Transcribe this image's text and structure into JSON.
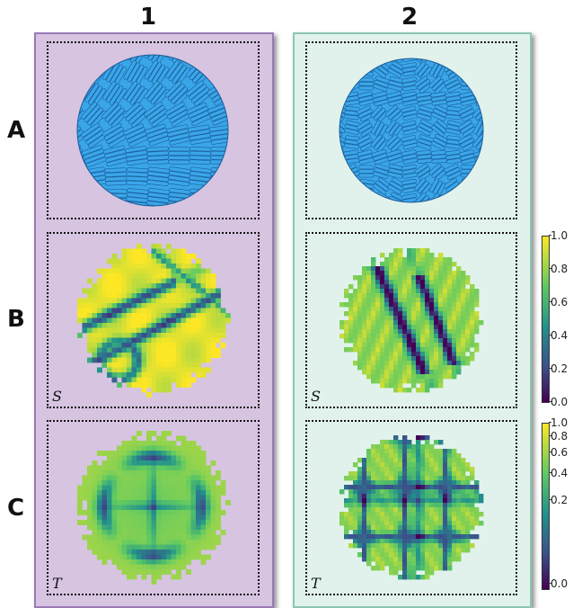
{
  "columns": [
    {
      "label": "1",
      "bg": "#d6c4e1",
      "border": "#9a7ab5"
    },
    {
      "label": "2",
      "bg": "#e1f2ec",
      "border": "#8cc7b0"
    }
  ],
  "rows": [
    {
      "label": "A"
    },
    {
      "label": "B"
    },
    {
      "label": "C"
    }
  ],
  "panel_labels": {
    "order": "S",
    "tetratic": "T"
  },
  "colors": {
    "particle": "#3aa6e8",
    "particle_edge": "#1b5c9a"
  },
  "colorbar_s": {
    "ticks": [
      "1.0",
      "0.8",
      "0.6",
      "0.4",
      "0.2",
      "0.0"
    ]
  },
  "colorbar_t": {
    "ticks": [
      "1.0",
      "0.8",
      "0.6",
      "0.4",
      "0.2",
      "0.0"
    ]
  }
}
